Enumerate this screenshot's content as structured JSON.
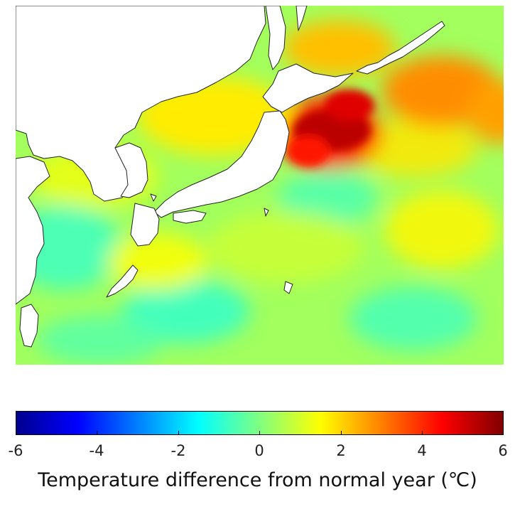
{
  "map": {
    "colorscale": {
      "min": -6,
      "max": 6,
      "stops": [
        "#00008f",
        "#0000ff",
        "#0080ff",
        "#00ffff",
        "#80ff80",
        "#ffff00",
        "#ff8000",
        "#ff0000",
        "#800000"
      ]
    },
    "base_anomaly": 0.4,
    "warm_zones": [
      {
        "region": "East of Tohoku (Sanriku offshore)",
        "anomaly": 5.3
      },
      {
        "region": "Sea of Okhotsk south",
        "anomaly": 3.0
      },
      {
        "region": "Sea of Japan",
        "anomaly": 2.3
      },
      {
        "region": "East of Hokkaido",
        "anomaly": 3.8
      },
      {
        "region": "Far east",
        "anomaly": 3.5
      }
    ]
  },
  "colorbar": {
    "ticks": [
      "-6",
      "-4",
      "-2",
      "0",
      "2",
      "4",
      "6"
    ],
    "title": "Temperature difference from normal year (℃)"
  }
}
